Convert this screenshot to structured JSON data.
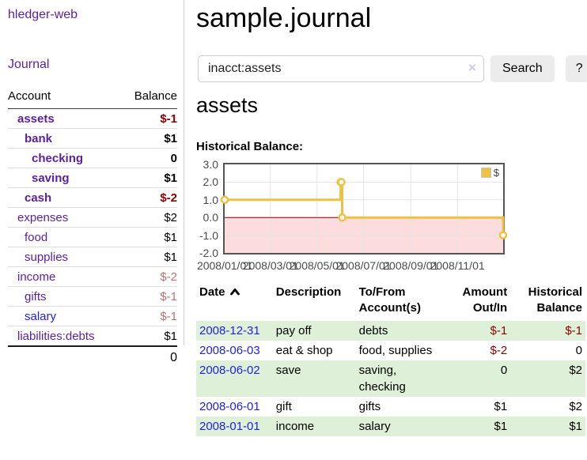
{
  "app": {
    "title": "hledger-web"
  },
  "nav": {
    "journal": "Journal"
  },
  "sidebar": {
    "headers": {
      "account": "Account",
      "balance": "Balance"
    },
    "accounts": [
      {
        "name": "assets",
        "balance": "$-1"
      },
      {
        "name": "bank",
        "balance": "$1"
      },
      {
        "name": "checking",
        "balance": "0"
      },
      {
        "name": "saving",
        "balance": "$1"
      },
      {
        "name": "cash",
        "balance": "$-2"
      },
      {
        "name": "expenses",
        "balance": "$2"
      },
      {
        "name": "food",
        "balance": "$1"
      },
      {
        "name": "supplies",
        "balance": "$1"
      },
      {
        "name": "income",
        "balance": "$-2"
      },
      {
        "name": "gifts",
        "balance": "$-1"
      },
      {
        "name": "salary",
        "balance": "$-1"
      },
      {
        "name": "liabilities:debts",
        "balance": "$1"
      }
    ],
    "total": "0"
  },
  "main": {
    "title": "sample.journal",
    "account_title": "assets",
    "chart_title": "Historical Balance:"
  },
  "search": {
    "value": "inacct:assets",
    "clear": "×",
    "submit": "Search",
    "help": "?"
  },
  "chart_data": {
    "type": "line",
    "title": "Historical Balance:",
    "series": [
      {
        "name": "$",
        "color": "#edc240",
        "step": true,
        "points": [
          {
            "x": "2008-01-01",
            "y": 1
          },
          {
            "x": "2008-06-01",
            "y": 2
          },
          {
            "x": "2008-06-02",
            "y": 2
          },
          {
            "x": "2008-06-03",
            "y": 0
          },
          {
            "x": "2008-12-31",
            "y": -1
          }
        ]
      }
    ],
    "xlim": [
      "2008-01-01",
      "2008-12-31"
    ],
    "ylim": [
      -2,
      3
    ],
    "yticks": [
      3.0,
      2.0,
      1.0,
      0.0,
      -1.0,
      -2.0
    ],
    "xticks": [
      "2008/01/01",
      "2008/03/01",
      "2008/05/01",
      "2008/07/01",
      "2008/09/01",
      "2008/11/01"
    ],
    "grid": true,
    "legend_position": "top-right",
    "grid_color": "#e4e4e4",
    "zero_line_color": "#800000",
    "negative_region_color": "#fcdcdc"
  },
  "register": {
    "headers": {
      "date": "Date",
      "description": "Description",
      "account": "To/From Account(s)",
      "amount": "Amount Out/In",
      "balance": "Historical Balance"
    },
    "rows": [
      {
        "date": "2008-12-31",
        "description": "pay off",
        "account": "debts",
        "amount": "$-1",
        "balance": "$-1"
      },
      {
        "date": "2008-06-03",
        "description": "eat & shop",
        "account": "food, supplies",
        "amount": "$-2",
        "balance": "0"
      },
      {
        "date": "2008-06-02",
        "description": "save",
        "account": "saving, checking",
        "amount": "0",
        "balance": "$2"
      },
      {
        "date": "2008-06-01",
        "description": "gift",
        "account": "gifts",
        "amount": "$1",
        "balance": "$2"
      },
      {
        "date": "2008-01-01",
        "description": "income",
        "account": "salary",
        "amount": "$1",
        "balance": "$1"
      }
    ]
  }
}
